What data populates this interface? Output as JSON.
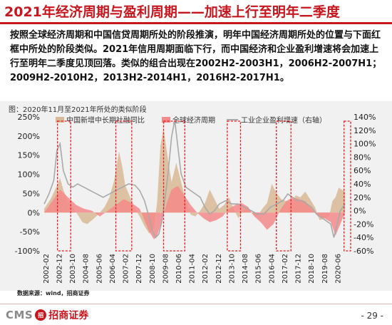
{
  "title": "2021年经济周期与盈利周期——加速上行至明年二季度",
  "paragraph": "按照全球经济周期和中国信贷周期所处的阶段推演，明年中国经济周期所处的位置与下面红框中所处的阶段类似。2021年信用周期面临下行，而中国经济和企业盈利增速将会加速上行至明年二季度见顶回落。类似的组合出现在2002H2-2003H1，2006H2-2007H1；2009H2-2010H2，2013H2-2014H1，2016H2-2017H1。",
  "source": "数据来源：wind，招商证券",
  "footer": {
    "logo_text": "CMS",
    "logo_badge": "招",
    "logo_cn": "招商证券",
    "page": "- 29 -"
  },
  "colors": {
    "tan": "#d9b895",
    "pink": "#f48a8a",
    "grey": "#a9a9a9",
    "box": "#e8191e",
    "chart_bg": "#f1f1f1"
  },
  "chart_data": {
    "type": "area",
    "title": "图：2020年11月至2021年所处的类似阶段",
    "legend_position": "top",
    "y_left": {
      "range": [
        -100,
        250
      ],
      "ticks": [
        -100,
        -50,
        0,
        50,
        100,
        150,
        200,
        250
      ],
      "tick_labels": [
        "-100%",
        "-50%",
        "0%",
        "50%",
        "100%",
        "150%",
        "200%",
        "250%"
      ]
    },
    "y_right": {
      "range": [
        -60,
        140
      ],
      "ticks": [
        -60,
        -40,
        -20,
        0,
        20,
        40,
        60,
        80,
        100,
        120,
        140
      ],
      "tick_labels": [
        "-60%",
        "-40%",
        "-20%",
        "0%",
        "20%",
        "40%",
        "60%",
        "80%",
        "100%",
        "120%",
        "140%"
      ]
    },
    "x_range": [
      2002.0,
      2021.25
    ],
    "x_tick_labels": [
      "2002-02",
      "2002-12",
      "2003-10",
      "2004-08",
      "2005-06",
      "2006-04",
      "2007-02",
      "2007-12",
      "2008-10",
      "2009-08",
      "2010-06",
      "2011-04",
      "2012-02",
      "2012-12",
      "2013-10",
      "2014-08",
      "2015-06",
      "2016-04",
      "2017-02",
      "2017-12",
      "2018-10",
      "2019-08",
      "2020-06"
    ],
    "highlight_boxes": [
      {
        "from": "2002-11",
        "to": "2003-09"
      },
      {
        "from": "2006-07",
        "to": "2007-07"
      },
      {
        "from": "2009-07",
        "to": "2010-11"
      },
      {
        "from": "2013-07",
        "to": "2014-05"
      },
      {
        "from": "2016-08",
        "to": "2017-07"
      },
      {
        "from": "2020-11",
        "to": "2021-04"
      }
    ],
    "series": [
      {
        "name": "中国新增中长期社融同比",
        "axis": "left",
        "style": "area",
        "x": [
          2002.0,
          2002.4,
          2002.8,
          2003.0,
          2003.2,
          2003.5,
          2003.8,
          2004.1,
          2004.4,
          2004.7,
          2005.0,
          2005.4,
          2005.8,
          2006.1,
          2006.4,
          2006.7,
          2006.9,
          2007.1,
          2007.4,
          2007.7,
          2008.0,
          2008.3,
          2008.6,
          2008.9,
          2009.1,
          2009.3,
          2009.5,
          2009.7,
          2010.0,
          2010.3,
          2010.6,
          2010.9,
          2011.2,
          2011.5,
          2011.8,
          2012.1,
          2012.4,
          2012.7,
          2013.0,
          2013.3,
          2013.6,
          2013.9,
          2014.2,
          2014.5,
          2014.8,
          2015.1,
          2015.4,
          2015.7,
          2016.0,
          2016.3,
          2016.6,
          2016.9,
          2017.2,
          2017.5,
          2017.8,
          2018.1,
          2018.4,
          2018.7,
          2019.0,
          2019.3,
          2019.6,
          2019.9,
          2020.1,
          2020.3,
          2020.5,
          2020.7,
          2020.9
        ],
        "y": [
          10,
          35,
          70,
          90,
          60,
          30,
          15,
          -5,
          -25,
          -30,
          -20,
          -5,
          15,
          40,
          85,
          160,
          120,
          70,
          40,
          10,
          -10,
          -35,
          -55,
          -40,
          30,
          175,
          220,
          160,
          80,
          130,
          80,
          30,
          -5,
          -10,
          5,
          25,
          60,
          35,
          10,
          20,
          40,
          10,
          -15,
          5,
          15,
          -5,
          -10,
          10,
          25,
          75,
          50,
          35,
          30,
          25,
          45,
          40,
          55,
          35,
          15,
          -20,
          -15,
          -10,
          30,
          40,
          65,
          60,
          55
        ]
      },
      {
        "name": "全球经济周期",
        "axis": "left",
        "style": "area",
        "x": [
          2002.0,
          2002.6,
          2003.0,
          2003.5,
          2004.0,
          2004.5,
          2005.0,
          2005.5,
          2006.0,
          2006.5,
          2007.0,
          2007.5,
          2008.0,
          2008.3,
          2008.6,
          2008.9,
          2009.1,
          2009.4,
          2009.7,
          2010.0,
          2010.4,
          2010.8,
          2011.2,
          2011.6,
          2012.0,
          2012.4,
          2012.8,
          2013.2,
          2013.6,
          2014.0,
          2014.4,
          2014.8,
          2015.2,
          2015.6,
          2016.0,
          2016.4,
          2016.8,
          2017.2,
          2017.6,
          2018.0,
          2018.4,
          2018.8,
          2019.2,
          2019.6,
          2020.0,
          2020.3,
          2020.6,
          2020.9
        ],
        "y": [
          0,
          35,
          60,
          40,
          20,
          10,
          5,
          -10,
          5,
          20,
          35,
          25,
          10,
          -20,
          -50,
          -70,
          -60,
          -20,
          25,
          60,
          70,
          45,
          20,
          0,
          -15,
          -25,
          -20,
          -10,
          10,
          20,
          25,
          15,
          -10,
          -25,
          -45,
          -30,
          5,
          30,
          40,
          35,
          30,
          10,
          -10,
          -15,
          -25,
          -60,
          -30,
          0
        ]
      },
      {
        "name": "工业企业盈利增速（右轴）",
        "axis": "right",
        "style": "line",
        "x": [
          2002.0,
          2002.3,
          2002.6,
          2002.8,
          2003.0,
          2003.2,
          2003.5,
          2003.8,
          2004.1,
          2004.5,
          2004.9,
          2005.3,
          2005.7,
          2006.1,
          2006.5,
          2006.9,
          2007.3,
          2007.7,
          2008.0,
          2008.3,
          2008.6,
          2008.8,
          2009.0,
          2009.2,
          2009.4,
          2009.6,
          2009.8,
          2010.0,
          2010.2,
          2010.4,
          2010.6,
          2010.9,
          2011.2,
          2011.5,
          2011.8,
          2012.1,
          2012.4,
          2012.7,
          2013.0,
          2013.4,
          2013.8,
          2014.2,
          2014.6,
          2015.0,
          2015.4,
          2015.8,
          2016.2,
          2016.6,
          2017.0,
          2017.3,
          2017.6,
          2017.9,
          2018.2,
          2018.5,
          2018.8,
          2019.1,
          2019.4,
          2019.7,
          2020.0,
          2020.2,
          2020.4,
          2020.6,
          2020.9
        ],
        "y": [
          10,
          25,
          45,
          90,
          100,
          60,
          40,
          35,
          40,
          35,
          30,
          25,
          20,
          25,
          30,
          35,
          40,
          38,
          30,
          15,
          -10,
          -30,
          -40,
          -35,
          -15,
          20,
          60,
          110,
          135,
          95,
          55,
          35,
          30,
          25,
          20,
          5,
          -5,
          0,
          10,
          15,
          10,
          10,
          5,
          0,
          -5,
          -5,
          5,
          10,
          15,
          25,
          20,
          15,
          15,
          10,
          5,
          -5,
          -10,
          -15,
          -20,
          -40,
          -20,
          0,
          10
        ]
      }
    ]
  }
}
